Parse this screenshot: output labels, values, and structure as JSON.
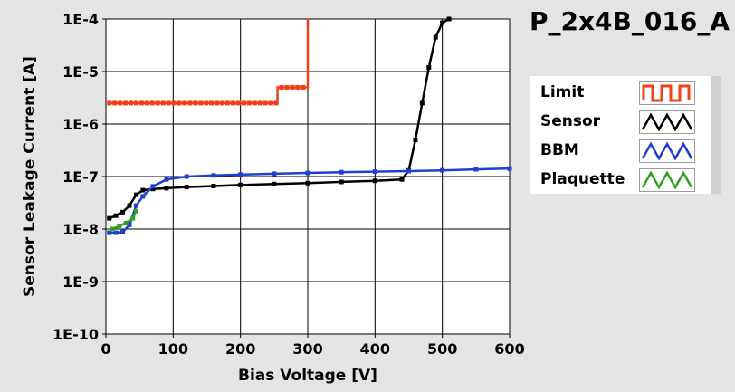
{
  "chart_data": {
    "type": "line",
    "title": "P_2x4B_016_A",
    "xlabel": "Bias Voltage [V]",
    "ylabel": "Sensor Leakage Current [A]",
    "xlim": [
      0,
      600
    ],
    "ylim": [
      1e-10,
      0.0001
    ],
    "yscale": "log",
    "xticks": [
      0,
      100,
      200,
      300,
      400,
      500,
      600
    ],
    "xtick_labels": [
      "0",
      "100",
      "200",
      "300",
      "400",
      "500",
      "600"
    ],
    "yticks": [
      1e-10,
      1e-09,
      1e-08,
      1e-07,
      1e-06,
      1e-05,
      0.0001
    ],
    "ytick_labels": [
      "1E-10",
      "1E-9",
      "1E-8",
      "1E-7",
      "1E-6",
      "1E-5",
      "1E-4"
    ],
    "grid": true,
    "legend_position": "right",
    "series": [
      {
        "name": "Limit",
        "color": "#f0401a",
        "step": true,
        "x": [
          5,
          250,
          255,
          300,
          300
        ],
        "y": [
          2.5e-06,
          2.5e-06,
          5e-06,
          5e-06,
          0.0001
        ]
      },
      {
        "name": "Sensor",
        "color": "#000000",
        "step": false,
        "x": [
          5,
          15,
          25,
          35,
          45,
          55,
          70,
          90,
          120,
          160,
          200,
          250,
          300,
          350,
          400,
          440,
          450,
          460,
          470,
          480,
          490,
          500,
          510
        ],
        "y": [
          1.6e-08,
          1.8e-08,
          2.1e-08,
          2.8e-08,
          4.5e-08,
          5.5e-08,
          5.8e-08,
          6e-08,
          6.3e-08,
          6.6e-08,
          6.9e-08,
          7.2e-08,
          7.5e-08,
          7.9e-08,
          8.3e-08,
          8.8e-08,
          1.3e-07,
          5e-07,
          2.5e-06,
          1.2e-05,
          4.5e-05,
          8.5e-05,
          0.0001
        ]
      },
      {
        "name": "BBM",
        "color": "#1f3fd0",
        "step": false,
        "x": [
          5,
          15,
          25,
          35,
          45,
          55,
          70,
          90,
          120,
          160,
          200,
          250,
          300,
          350,
          400,
          450,
          500,
          550,
          600
        ],
        "y": [
          8.5e-09,
          8.5e-09,
          8.8e-09,
          1.2e-08,
          2.8e-08,
          4.2e-08,
          6.5e-08,
          8.8e-08,
          1e-07,
          1.05e-07,
          1.09e-07,
          1.13e-07,
          1.17e-07,
          1.21e-07,
          1.24e-07,
          1.27e-07,
          1.31e-07,
          1.37e-07,
          1.42e-07
        ]
      },
      {
        "name": "Plaquette",
        "color": "#2fa020",
        "step": false,
        "x": [
          10,
          20,
          30,
          40,
          45
        ],
        "y": [
          1e-08,
          1.15e-08,
          1.3e-08,
          1.6e-08,
          2.2e-08
        ]
      }
    ]
  }
}
